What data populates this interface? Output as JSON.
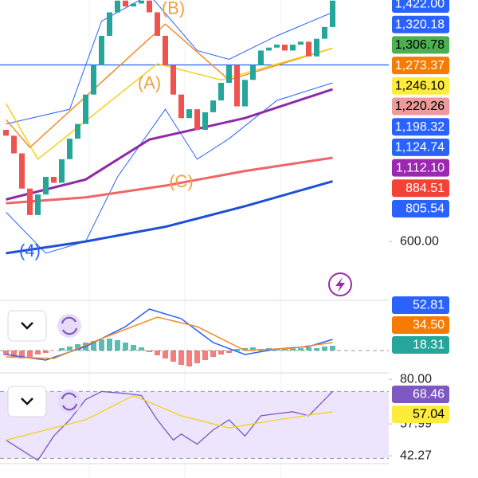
{
  "chart_data": [
    {
      "type": "candlestick",
      "open": [
        980,
        960,
        900,
        780,
        690,
        760,
        820,
        800,
        880,
        950,
        1000,
        1100,
        1200,
        1300,
        1380,
        1420,
        1400,
        1410,
        1420,
        1380,
        1300,
        1200,
        1100,
        1020,
        1050,
        980,
        1040,
        1080,
        1140,
        1200,
        1060,
        1150,
        1200,
        1250,
        1260,
        1270,
        1250,
        1270,
        1280,
        1230,
        1290,
        1330
      ],
      "close": [
        960,
        900,
        780,
        690,
        760,
        820,
        800,
        880,
        950,
        1000,
        1100,
        1200,
        1300,
        1380,
        1420,
        1400,
        1410,
        1420,
        1380,
        1300,
        1200,
        1100,
        1020,
        1050,
        980,
        1040,
        1080,
        1140,
        1200,
        1060,
        1150,
        1200,
        1250,
        1260,
        1270,
        1250,
        1270,
        1280,
        1230,
        1290,
        1330,
        1420
      ],
      "up_color": "#26a69a",
      "down_color": "#ef5350",
      "ylim": [
        405,
        1422
      ],
      "yticks": [
        {
          "value": 600,
          "label": "600.00"
        }
      ],
      "hline": {
        "value": 1201,
        "color": "#2962ff"
      },
      "lines": [
        {
          "color": "#2962ff",
          "width": 1,
          "x": [
            0,
            8,
            12,
            18,
            24,
            28,
            34,
            41
          ],
          "values": [
            1000,
            1050,
            1350,
            1440,
            1250,
            1220,
            1300,
            1380
          ]
        },
        {
          "color": "#2962ff",
          "width": 1,
          "x": [
            0,
            5,
            10,
            14,
            20,
            24,
            28,
            34,
            41
          ],
          "values": [
            700,
            560,
            600,
            820,
            1050,
            880,
            950,
            1080,
            1140
          ]
        },
        {
          "color": "#1e4fd8",
          "width": 3,
          "x": [
            0,
            10,
            20,
            30,
            41
          ],
          "values": [
            560,
            600,
            650,
            720,
            805
          ]
        },
        {
          "color": "#f06565",
          "width": 3,
          "x": [
            0,
            10,
            20,
            30,
            41
          ],
          "values": [
            730,
            750,
            790,
            840,
            885
          ]
        },
        {
          "color": "#8e2aa8",
          "width": 3,
          "x": [
            0,
            10,
            18,
            30,
            41
          ],
          "values": [
            743,
            811,
            947,
            1020,
            1118
          ]
        },
        {
          "color": "#f08c2a",
          "width": 1.5,
          "x": [
            0,
            3,
            20,
            28,
            41
          ],
          "values": [
            1015,
            920,
            1340,
            1150,
            1258
          ]
        },
        {
          "color": "#f2d21b",
          "width": 1.5,
          "x": [
            0,
            4,
            19,
            27,
            41
          ],
          "values": [
            1070,
            880,
            1205,
            1150,
            1258
          ]
        }
      ],
      "annotations": [
        {
          "text": "(B)",
          "x": 21,
          "y": 1390,
          "color": "#f0a040"
        },
        {
          "text": "(A)",
          "x": 18,
          "y": 1135,
          "color": "#f0a040"
        },
        {
          "text": "(C)",
          "x": 22,
          "y": 800,
          "color": "#f0a040"
        },
        {
          "text": "(4)",
          "x": 3,
          "y": 565,
          "color": "#2962ff"
        }
      ],
      "tags": [
        {
          "value": 1422.0,
          "label": "1,422.00",
          "color": "#2962ff",
          "text_color": "#fff"
        },
        {
          "value": 1320.18,
          "label": "1,320.18",
          "color": "#2962ff",
          "text_color": "#fff"
        },
        {
          "value": 1306.78,
          "label": "1,306.78",
          "color": "#4caf50",
          "text_color": "#000"
        },
        {
          "value": 1273.37,
          "label": "1,273.37",
          "color": "#f57c00",
          "text_color": "#fff"
        },
        {
          "value": 1246.1,
          "label": "1,246.10",
          "color": "#ffeb3b",
          "text_color": "#000"
        },
        {
          "value": 1220.26,
          "label": "1,220.26",
          "color": "#ef9a9a",
          "text_color": "#000"
        },
        {
          "value": 1198.32,
          "label": "1,198.32",
          "color": "#2962ff",
          "text_color": "#fff"
        },
        {
          "value": 1124.74,
          "label": "1,124.74",
          "color": "#2962ff",
          "text_color": "#fff"
        },
        {
          "value": 1112.1,
          "label": "1,112.10",
          "color": "#9c27b0",
          "text_color": "#fff"
        },
        {
          "value": 884.51,
          "label": "884.51",
          "color": "#f44336",
          "text_color": "#fff"
        },
        {
          "value": 805.54,
          "label": "805.54",
          "color": "#2962ff",
          "text_color": "#fff"
        }
      ]
    },
    {
      "type": "histogram-lines",
      "ylim": [
        -25,
        60
      ],
      "zero": 0,
      "values": [
        -6,
        -8,
        -10,
        -9,
        -5,
        -3,
        0,
        3,
        5,
        8,
        10,
        12,
        14,
        15,
        13,
        10,
        7,
        4,
        -2,
        -6,
        -10,
        -14,
        -18,
        -20,
        -16,
        -12,
        -8,
        -5,
        -3,
        2,
        3,
        4,
        2,
        3,
        2,
        3,
        4,
        3,
        4,
        3,
        5,
        6
      ],
      "up_color": "#26a69a",
      "down_color": "#ef5350",
      "lines": [
        {
          "color": "#2962ff",
          "width": 1.5,
          "x": [
            0,
            5,
            10,
            15,
            18,
            22,
            26,
            30,
            34,
            38,
            41
          ],
          "values": [
            -5,
            -12,
            5,
            30,
            52,
            40,
            10,
            -5,
            2,
            5,
            14
          ]
        },
        {
          "color": "#f08c2a",
          "width": 1.5,
          "x": [
            0,
            6,
            12,
            19,
            24,
            30,
            36,
            41
          ],
          "values": [
            -8,
            -10,
            15,
            42,
            30,
            0,
            3,
            10
          ]
        }
      ],
      "tags": [
        {
          "value": 52.81,
          "label": "52.81",
          "color": "#2962ff",
          "text_color": "#fff"
        },
        {
          "value": 34.5,
          "label": "34.50",
          "color": "#f57c00",
          "text_color": "#fff"
        },
        {
          "value": 18.31,
          "label": "18.31",
          "color": "#26a69a",
          "text_color": "#fff"
        }
      ]
    },
    {
      "type": "oscillator",
      "ylim": [
        37.2,
        82.4
      ],
      "yticks": [
        {
          "value": 80,
          "label": "80.00"
        },
        57.99,
        42.27
      ],
      "band": [
        41,
        74
      ],
      "band_color": "#ede5fb",
      "lines": [
        {
          "color": "#7e57c2",
          "width": 1.3,
          "x": [
            0,
            2,
            4,
            6,
            8,
            10,
            12,
            15,
            17,
            19,
            21,
            22,
            24,
            26,
            28,
            30,
            32,
            34,
            36,
            38,
            40,
            41
          ],
          "values": [
            50,
            45,
            40,
            52,
            60,
            70,
            74,
            73,
            72,
            60,
            50,
            53,
            48,
            55,
            60,
            52,
            62,
            63,
            64,
            62,
            70,
            74
          ]
        },
        {
          "color": "#f2d21b",
          "width": 1.3,
          "x": [
            0,
            10,
            16,
            22,
            28,
            34,
            41
          ],
          "values": [
            50,
            60,
            72,
            62,
            56,
            60,
            64
          ]
        }
      ],
      "tags": [
        {
          "value": 68.46,
          "label": "68.46",
          "color": "#7e57c2",
          "text_color": "#fff"
        },
        {
          "value": 57.04,
          "label": "57.04",
          "color": "#ffeb3b",
          "text_color": "#000"
        }
      ]
    }
  ]
}
